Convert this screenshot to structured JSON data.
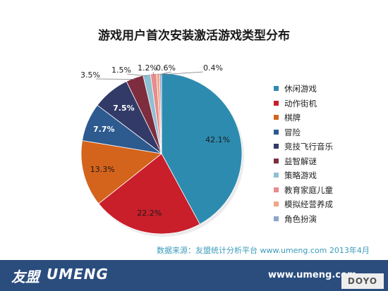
{
  "chart_data": {
    "type": "pie",
    "title": "游戏用户首次安装激活游戏类型分布",
    "slices": [
      {
        "name": "休闲游戏",
        "value": 42.1,
        "label": "42.1%",
        "color": "#2e8bb0"
      },
      {
        "name": "动作街机",
        "value": 22.2,
        "label": "22.2%",
        "color": "#c81f2b"
      },
      {
        "name": "棋牌",
        "value": 13.3,
        "label": "13.3%",
        "color": "#d4631c"
      },
      {
        "name": "冒险",
        "value": 7.7,
        "label": "7.7%",
        "color": "#2d5a8f"
      },
      {
        "name": "竞技飞行音乐",
        "value": 7.5,
        "label": "7.5%",
        "color": "#323a67"
      },
      {
        "name": "益智解谜",
        "value": 3.5,
        "label": "3.5%",
        "color": "#7e2d3e"
      },
      {
        "name": "策略游戏",
        "value": 1.5,
        "label": "1.5%",
        "color": "#8ec0d4"
      },
      {
        "name": "教育家庭儿童",
        "value": 1.2,
        "label": "1.2%",
        "color": "#e88c8c"
      },
      {
        "name": "模拟经营养成",
        "value": 0.6,
        "label": "0.6%",
        "color": "#f0a488"
      },
      {
        "name": "角色扮演",
        "value": 0.4,
        "label": "0.4%",
        "color": "#8fa5c8"
      }
    ],
    "legend_position": "right"
  },
  "source_text": "数据来源：友盟统计分析平台 www.umeng.com 2013年4月",
  "footer": {
    "logo_cn": "友盟",
    "logo_en": "UMENG",
    "url": "www.umeng.com",
    "watermark": "DOYO"
  }
}
